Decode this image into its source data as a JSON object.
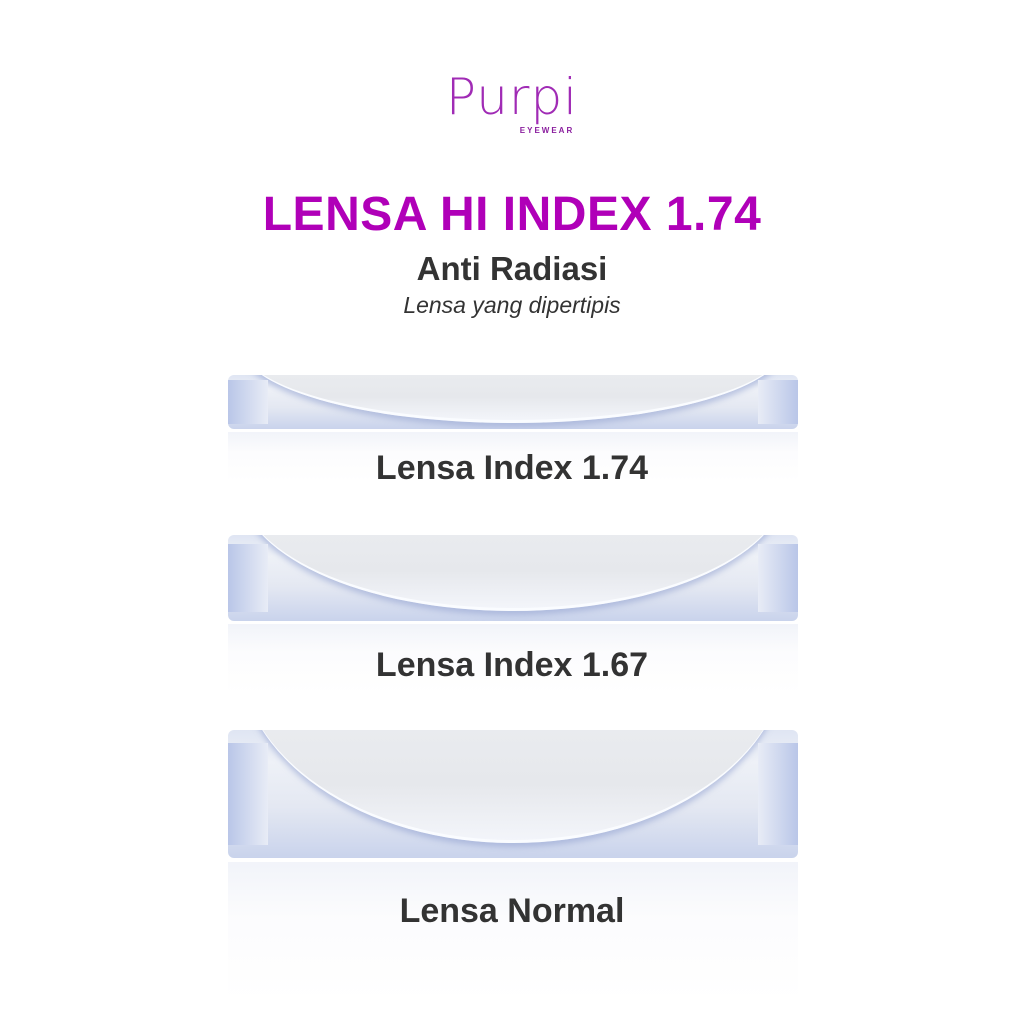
{
  "brand": {
    "name": "Purpi",
    "tagline": "EYEWEAR",
    "color": "#a02bb5"
  },
  "header": {
    "title": "LENSA HI INDEX 1.74",
    "title_color": "#b000b8",
    "subtitle": "Anti Radiasi",
    "tagline": "Lensa yang dipertipis"
  },
  "lenses": [
    {
      "label": "Lensa Index 1.74"
    },
    {
      "label": "Lensa Index 1.67"
    },
    {
      "label": "Lensa Normal"
    }
  ]
}
